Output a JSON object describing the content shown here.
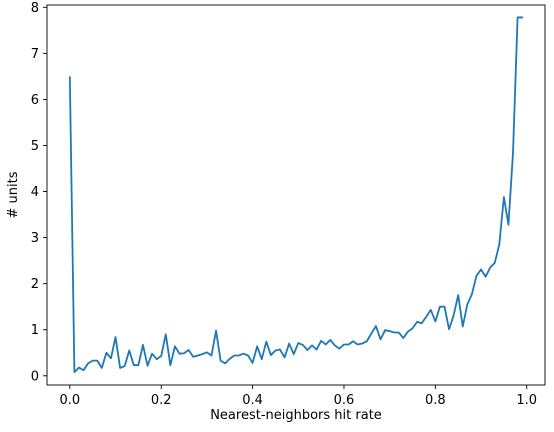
{
  "colors": {
    "series": "#1f77b4",
    "axes": "#000000",
    "background": "#ffffff"
  },
  "chart_data": {
    "type": "line",
    "title": "",
    "xlabel": "Nearest-neighbors hit rate",
    "ylabel": "# units",
    "xlim": [
      -0.05,
      1.04
    ],
    "ylim": [
      -0.2,
      8.05
    ],
    "xticks": [
      0.0,
      0.2,
      0.4,
      0.6,
      0.8,
      1.0
    ],
    "xtick_labels": [
      "0.0",
      "0.2",
      "0.4",
      "0.6",
      "0.8",
      "1.0"
    ],
    "yticks": [
      0,
      1,
      2,
      3,
      4,
      5,
      6,
      7,
      8
    ],
    "ytick_labels": [
      "0",
      "1",
      "2",
      "3",
      "4",
      "5",
      "6",
      "7",
      "8"
    ],
    "grid": false,
    "legend": "none",
    "series": [
      {
        "x": [
          0.0,
          0.01,
          0.02,
          0.03,
          0.04,
          0.05,
          0.06,
          0.07,
          0.08,
          0.09,
          0.1,
          0.11,
          0.12,
          0.13,
          0.14,
          0.15,
          0.16,
          0.17,
          0.18,
          0.19,
          0.2,
          0.21,
          0.22,
          0.23,
          0.24,
          0.25,
          0.26,
          0.27,
          0.28,
          0.29,
          0.3,
          0.31,
          0.32,
          0.33,
          0.34,
          0.35,
          0.36,
          0.37,
          0.38,
          0.39,
          0.4,
          0.41,
          0.42,
          0.43,
          0.44,
          0.45,
          0.46,
          0.47,
          0.48,
          0.49,
          0.5,
          0.51,
          0.52,
          0.53,
          0.54,
          0.55,
          0.56,
          0.57,
          0.58,
          0.59,
          0.6,
          0.61,
          0.62,
          0.63,
          0.64,
          0.65,
          0.66,
          0.67,
          0.68,
          0.69,
          0.7,
          0.71,
          0.72,
          0.73,
          0.74,
          0.75,
          0.76,
          0.77,
          0.78,
          0.79,
          0.8,
          0.81,
          0.82,
          0.83,
          0.84,
          0.85,
          0.86,
          0.87,
          0.88,
          0.89,
          0.9,
          0.91,
          0.92,
          0.93,
          0.94,
          0.95,
          0.96,
          0.97,
          0.98,
          0.99
        ],
        "values": [
          6.48,
          0.08,
          0.18,
          0.12,
          0.27,
          0.33,
          0.33,
          0.17,
          0.5,
          0.38,
          0.84,
          0.17,
          0.21,
          0.55,
          0.23,
          0.23,
          0.67,
          0.22,
          0.48,
          0.36,
          0.43,
          0.9,
          0.23,
          0.64,
          0.48,
          0.49,
          0.56,
          0.41,
          0.44,
          0.47,
          0.51,
          0.44,
          0.98,
          0.33,
          0.27,
          0.37,
          0.44,
          0.44,
          0.48,
          0.44,
          0.28,
          0.64,
          0.36,
          0.74,
          0.45,
          0.55,
          0.57,
          0.4,
          0.7,
          0.47,
          0.71,
          0.67,
          0.56,
          0.66,
          0.57,
          0.76,
          0.68,
          0.78,
          0.66,
          0.59,
          0.68,
          0.68,
          0.75,
          0.68,
          0.7,
          0.75,
          0.92,
          1.08,
          0.79,
          0.99,
          0.97,
          0.94,
          0.94,
          0.82,
          0.96,
          1.03,
          1.17,
          1.14,
          1.28,
          1.43,
          1.18,
          1.5,
          1.5,
          1.01,
          1.31,
          1.75,
          1.07,
          1.55,
          1.77,
          2.17,
          2.31,
          2.15,
          2.35,
          2.45,
          2.85,
          3.88,
          3.28,
          4.85,
          7.78,
          7.78
        ]
      }
    ]
  }
}
